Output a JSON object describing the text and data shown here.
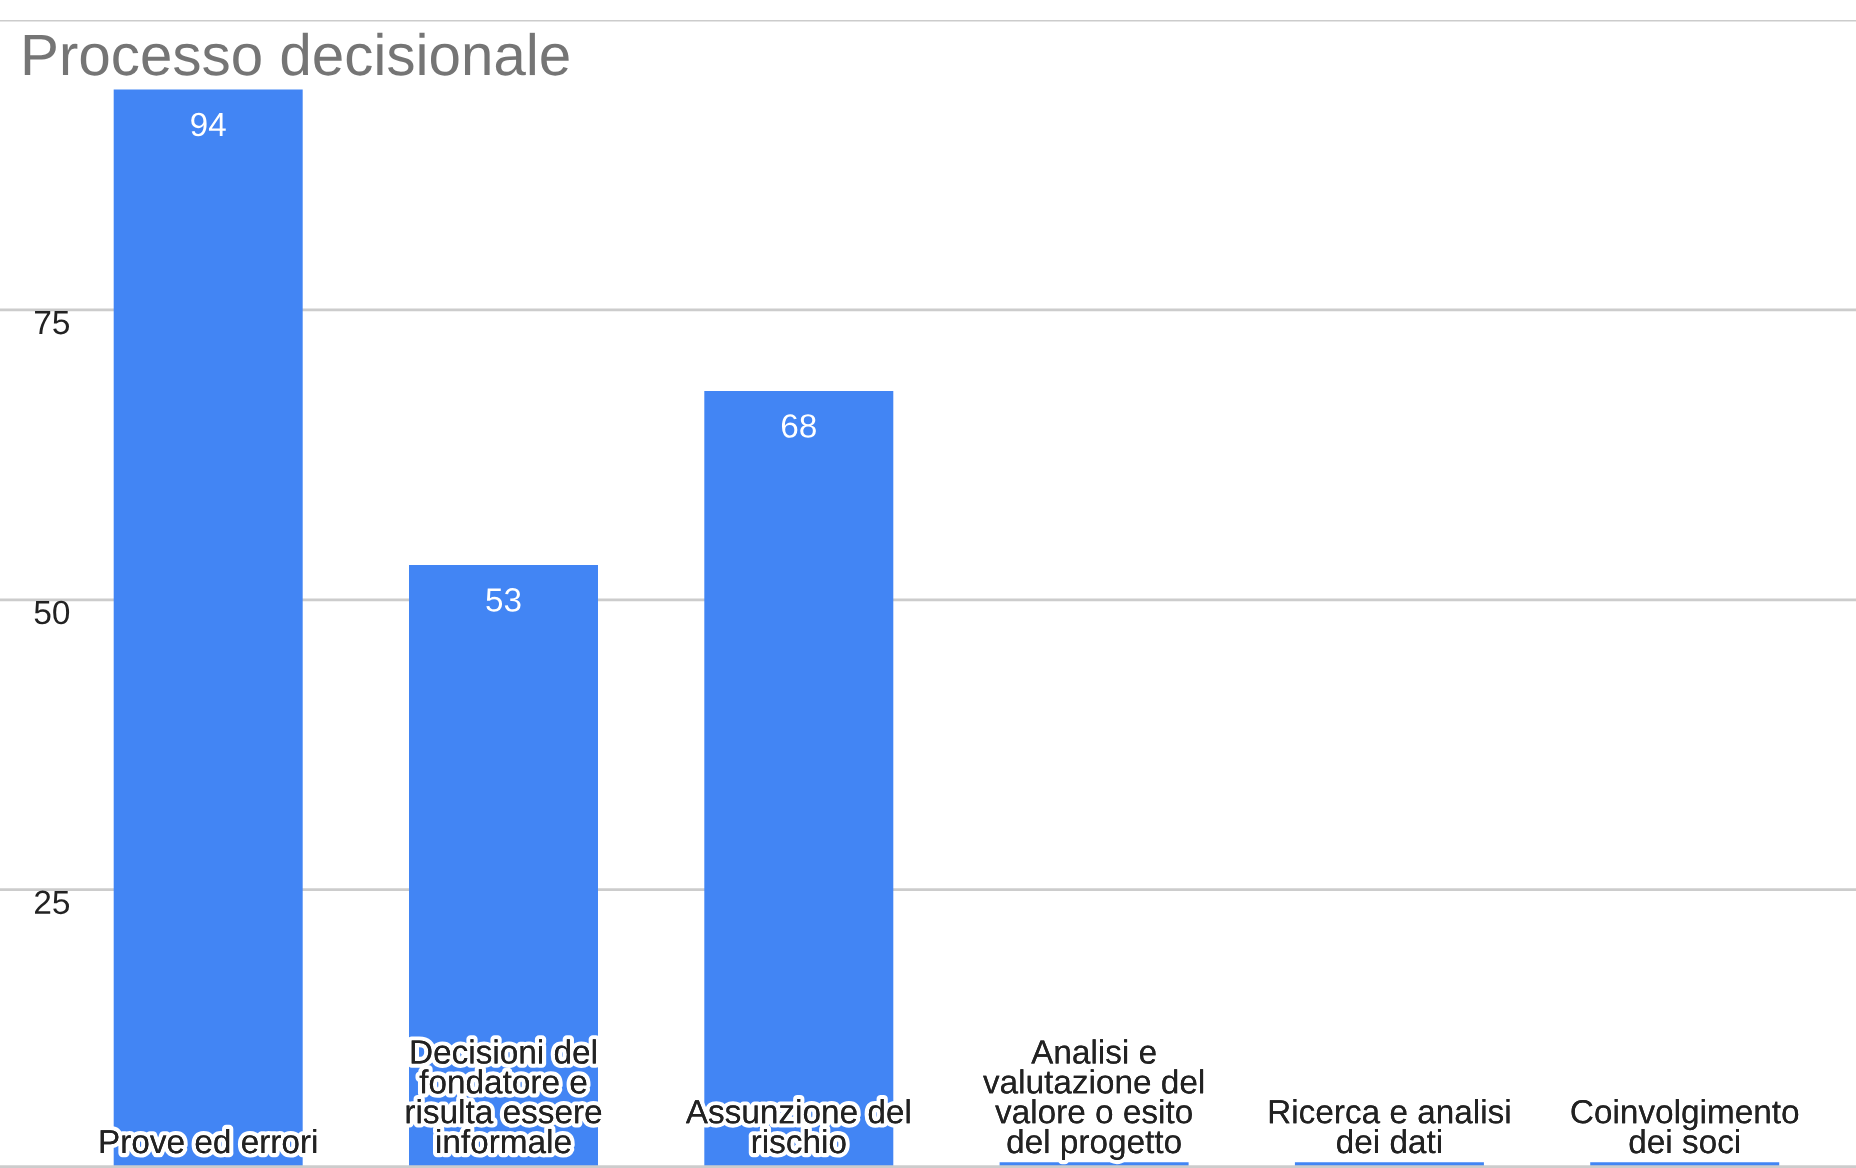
{
  "chart_data": {
    "type": "bar",
    "title": "Processo decisionale",
    "categories": [
      "Prove ed errori",
      "Decisioni del fondatore e risulta essere informale",
      "Assunzione del rischio",
      "Analisi e valutazione del valore o esito del progetto",
      "Ricerca e analisi dei dati",
      "Coinvolgimento dei soci"
    ],
    "values": [
      94,
      53,
      68,
      1.5,
      1.5,
      1.5
    ],
    "value_labels": [
      "94",
      "53",
      "68",
      null,
      null,
      null
    ],
    "color": "#4285f4",
    "ylim": [
      1,
      100
    ],
    "yticks": [
      25,
      50,
      75,
      {
        "value": 100,
        "label": null
      }
    ],
    "grid": "y"
  }
}
